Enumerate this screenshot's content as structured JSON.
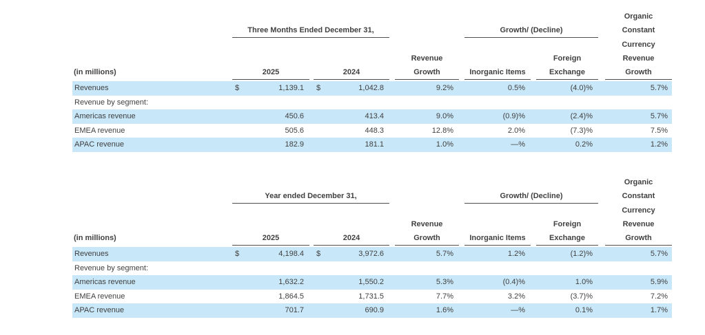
{
  "colors": {
    "highlight_row": "#c8e7f8",
    "text": "#404040",
    "rule": "#4d4d4d",
    "background": "#ffffff"
  },
  "tables": [
    {
      "period_header": "Three Months Ended December 31,",
      "growth_decline_header": "Growth/ (Decline)",
      "organic_lines": [
        "Organic",
        "Constant",
        "Currency",
        "Revenue",
        "Growth"
      ],
      "label_header": "(in millions)",
      "year_1": "2025",
      "year_2": "2024",
      "revenue_growth_line1": "Revenue",
      "revenue_growth_line2": "Growth",
      "inorganic_header": "Inorganic Items",
      "foreign_line1": "Foreign",
      "foreign_line2": "Exchange",
      "rows": [
        {
          "label": "Revenues",
          "d1": "$",
          "v1": "1,139.1",
          "d2": "$",
          "v2": "1,042.8",
          "growth": "9.2%",
          "inorganic": "0.5%",
          "fx": "(4.0)%",
          "organic": "5.7%",
          "highlight": true
        },
        {
          "label": "Revenue by segment:",
          "d1": "",
          "v1": "",
          "d2": "",
          "v2": "",
          "growth": "",
          "inorganic": "",
          "fx": "",
          "organic": "",
          "highlight": false
        },
        {
          "label": "Americas revenue",
          "d1": "",
          "v1": "450.6",
          "d2": "",
          "v2": "413.4",
          "growth": "9.0%",
          "inorganic": "(0.9)%",
          "fx": "(2.4)%",
          "organic": "5.7%",
          "highlight": true
        },
        {
          "label": "EMEA revenue",
          "d1": "",
          "v1": "505.6",
          "d2": "",
          "v2": "448.3",
          "growth": "12.8%",
          "inorganic": "2.0%",
          "fx": "(7.3)%",
          "organic": "7.5%",
          "highlight": false
        },
        {
          "label": "APAC revenue",
          "d1": "",
          "v1": "182.9",
          "d2": "",
          "v2": "181.1",
          "growth": "1.0%",
          "inorganic": "—%",
          "fx": "0.2%",
          "organic": "1.2%",
          "highlight": true
        }
      ]
    },
    {
      "period_header": "Year ended December 31,",
      "growth_decline_header": "Growth/ (Decline)",
      "organic_lines": [
        "Organic",
        "Constant",
        "Currency",
        "Revenue",
        "Growth"
      ],
      "label_header": "(in millions)",
      "year_1": "2025",
      "year_2": "2024",
      "revenue_growth_line1": "Revenue",
      "revenue_growth_line2": "Growth",
      "inorganic_header": "Inorganic Items",
      "foreign_line1": "Foreign",
      "foreign_line2": "Exchange",
      "rows": [
        {
          "label": "Revenues",
          "d1": "$",
          "v1": "4,198.4",
          "d2": "$",
          "v2": "3,972.6",
          "growth": "5.7%",
          "inorganic": "1.2%",
          "fx": "(1.2)%",
          "organic": "5.7%",
          "highlight": true
        },
        {
          "label": "Revenue by segment:",
          "d1": "",
          "v1": "",
          "d2": "",
          "v2": "",
          "growth": "",
          "inorganic": "",
          "fx": "",
          "organic": "",
          "highlight": false
        },
        {
          "label": "Americas revenue",
          "d1": "",
          "v1": "1,632.2",
          "d2": "",
          "v2": "1,550.2",
          "growth": "5.3%",
          "inorganic": "(0.4)%",
          "fx": "1.0%",
          "organic": "5.9%",
          "highlight": true
        },
        {
          "label": "EMEA revenue",
          "d1": "",
          "v1": "1,864.5",
          "d2": "",
          "v2": "1,731.5",
          "growth": "7.7%",
          "inorganic": "3.2%",
          "fx": "(3.7)%",
          "organic": "7.2%",
          "highlight": false
        },
        {
          "label": "APAC revenue",
          "d1": "",
          "v1": "701.7",
          "d2": "",
          "v2": "690.9",
          "growth": "1.6%",
          "inorganic": "—%",
          "fx": "0.1%",
          "organic": "1.7%",
          "highlight": true
        }
      ]
    }
  ]
}
